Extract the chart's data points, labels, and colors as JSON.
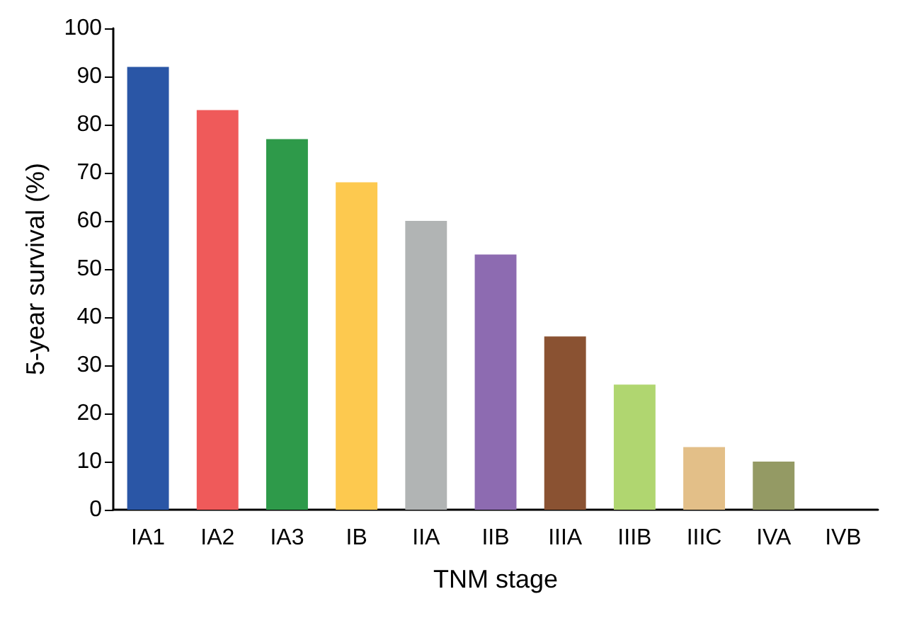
{
  "chart_data": {
    "type": "bar",
    "xlabel": "TNM stage",
    "ylabel": "5-year survival (%)",
    "categories": [
      "IA1",
      "IA2",
      "IA3",
      "IB",
      "IIA",
      "IIB",
      "IIIA",
      "IIIB",
      "IIIC",
      "IVA",
      "IVB"
    ],
    "values": [
      92,
      83,
      77,
      68,
      60,
      53,
      36,
      26,
      13,
      10,
      0
    ],
    "colors": [
      "#2a56a6",
      "#ef5a5a",
      "#2e9a4a",
      "#fdc94f",
      "#b1b4b4",
      "#8d6bb1",
      "#8a5232",
      "#b0d670",
      "#e3bf88",
      "#949a64",
      "#666666"
    ],
    "ylim": [
      0,
      100
    ],
    "yticks": [
      0,
      10,
      20,
      30,
      40,
      50,
      60,
      70,
      80,
      90,
      100
    ],
    "grid": false
  }
}
